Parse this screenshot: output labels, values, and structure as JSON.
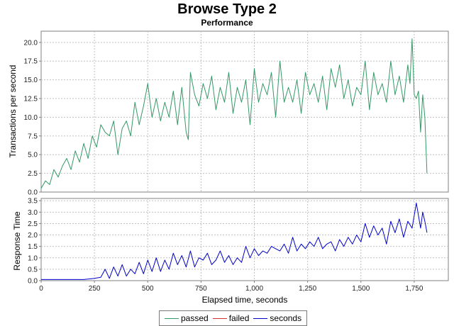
{
  "title": "Browse Type 2",
  "subtitle": "Performance",
  "legend": [
    {
      "name": "passed",
      "color": "#339966"
    },
    {
      "name": "failed",
      "color": "#cc3333"
    },
    {
      "name": "seconds",
      "color": "#0000cc"
    }
  ],
  "chart_data": [
    {
      "type": "line",
      "title": "Browse Type 2",
      "subtitle": "Performance",
      "xlabel": "Elapsed time, seconds",
      "ylabel": "Transactions per second",
      "xlim": [
        0,
        1910
      ],
      "ylim": [
        0,
        21.5
      ],
      "x_ticks": [
        0,
        250,
        500,
        750,
        1000,
        1250,
        1500,
        1750
      ],
      "x_tick_labels": [
        "0",
        "250",
        "500",
        "750",
        "1,000",
        "1,250",
        "1,500",
        "1,750"
      ],
      "y_ticks": [
        0,
        2.5,
        5,
        7.5,
        10,
        12.5,
        15,
        17.5,
        20
      ],
      "y_tick_labels": [
        "0.0",
        "2.5",
        "5.0",
        "7.5",
        "10.0",
        "12.5",
        "15.0",
        "17.5",
        "20.0"
      ],
      "grid": true,
      "series": [
        {
          "name": "passed",
          "color": "#339966",
          "x": [
            0,
            20,
            40,
            60,
            80,
            100,
            120,
            140,
            160,
            180,
            200,
            220,
            240,
            260,
            280,
            300,
            320,
            340,
            360,
            380,
            400,
            420,
            440,
            460,
            480,
            500,
            520,
            540,
            560,
            580,
            600,
            620,
            640,
            660,
            680,
            690,
            700,
            720,
            740,
            760,
            780,
            800,
            820,
            840,
            860,
            880,
            900,
            920,
            940,
            960,
            980,
            1000,
            1020,
            1040,
            1060,
            1080,
            1100,
            1120,
            1140,
            1160,
            1180,
            1200,
            1220,
            1240,
            1260,
            1280,
            1300,
            1320,
            1340,
            1360,
            1380,
            1400,
            1420,
            1440,
            1460,
            1480,
            1500,
            1520,
            1540,
            1560,
            1580,
            1600,
            1620,
            1640,
            1660,
            1680,
            1700,
            1720,
            1730,
            1740,
            1750,
            1760,
            1770,
            1780,
            1790,
            1800,
            1810
          ],
          "values": [
            0.5,
            1.5,
            1.0,
            3.0,
            2.0,
            3.5,
            4.5,
            3.0,
            5.5,
            4.0,
            6.5,
            4.5,
            7.5,
            6.0,
            9.0,
            8.0,
            7.5,
            9.5,
            5.0,
            8.5,
            9.5,
            7.5,
            12.0,
            9.0,
            11.5,
            14.5,
            10.0,
            12.5,
            9.5,
            12.0,
            10.0,
            13.5,
            9.0,
            14.0,
            8.0,
            7.0,
            16.0,
            13.0,
            11.5,
            14.5,
            12.5,
            15.5,
            11.0,
            14.0,
            12.0,
            16.0,
            10.5,
            14.0,
            12.0,
            15.0,
            9.0,
            16.5,
            12.0,
            14.5,
            13.0,
            16.0,
            10.0,
            17.5,
            12.0,
            14.0,
            12.0,
            15.0,
            10.5,
            16.0,
            13.0,
            14.5,
            12.0,
            15.5,
            11.0,
            16.5,
            14.0,
            17.0,
            12.5,
            15.0,
            11.5,
            14.0,
            13.0,
            17.5,
            11.0,
            16.0,
            13.0,
            14.5,
            12.0,
            17.5,
            13.0,
            15.5,
            12.0,
            17.0,
            14.5,
            20.5,
            13.0,
            12.5,
            13.5,
            8.0,
            13.0,
            10.0,
            2.5
          ]
        }
      ]
    },
    {
      "type": "line",
      "xlabel": "Elapsed time, seconds",
      "ylabel": "Response Time",
      "xlim": [
        0,
        1910
      ],
      "ylim": [
        0,
        3.6
      ],
      "y_ticks": [
        0,
        0.5,
        1,
        1.5,
        2,
        2.5,
        3,
        3.5
      ],
      "y_tick_labels": [
        "0.0",
        "0.5",
        "1.0",
        "1.5",
        "2.0",
        "2.5",
        "3.0",
        "3.5"
      ],
      "grid": true,
      "series": [
        {
          "name": "seconds",
          "color": "#0000cc",
          "x": [
            0,
            50,
            100,
            150,
            200,
            250,
            280,
            300,
            320,
            340,
            360,
            380,
            400,
            420,
            440,
            460,
            480,
            500,
            520,
            540,
            560,
            580,
            600,
            620,
            640,
            660,
            680,
            700,
            720,
            740,
            760,
            780,
            800,
            820,
            840,
            860,
            880,
            900,
            920,
            940,
            960,
            980,
            1000,
            1020,
            1040,
            1060,
            1080,
            1100,
            1120,
            1140,
            1160,
            1180,
            1200,
            1220,
            1240,
            1260,
            1280,
            1300,
            1320,
            1340,
            1360,
            1380,
            1400,
            1420,
            1440,
            1460,
            1480,
            1500,
            1520,
            1540,
            1560,
            1580,
            1600,
            1620,
            1640,
            1660,
            1680,
            1700,
            1720,
            1740,
            1760,
            1780,
            1790,
            1800,
            1810
          ],
          "values": [
            0.05,
            0.05,
            0.05,
            0.05,
            0.05,
            0.1,
            0.15,
            0.5,
            0.1,
            0.6,
            0.2,
            0.7,
            0.2,
            0.5,
            0.3,
            0.8,
            0.3,
            0.9,
            0.4,
            1.0,
            0.4,
            0.9,
            0.5,
            1.2,
            0.7,
            1.1,
            0.6,
            1.3,
            0.6,
            1.0,
            0.9,
            1.2,
            0.7,
            0.9,
            1.3,
            0.8,
            1.1,
            0.7,
            1.0,
            0.8,
            1.5,
            1.0,
            1.4,
            1.1,
            1.3,
            1.2,
            1.5,
            1.4,
            1.3,
            1.6,
            1.2,
            1.9,
            1.3,
            1.6,
            1.4,
            1.7,
            1.5,
            1.9,
            1.4,
            1.6,
            1.7,
            1.3,
            1.8,
            1.5,
            1.9,
            1.6,
            2.0,
            1.7,
            2.5,
            1.9,
            2.4,
            2.0,
            2.3,
            1.6,
            2.6,
            2.1,
            2.7,
            1.9,
            2.6,
            2.3,
            3.4,
            2.3,
            3.0,
            2.6,
            2.1
          ]
        }
      ]
    }
  ]
}
